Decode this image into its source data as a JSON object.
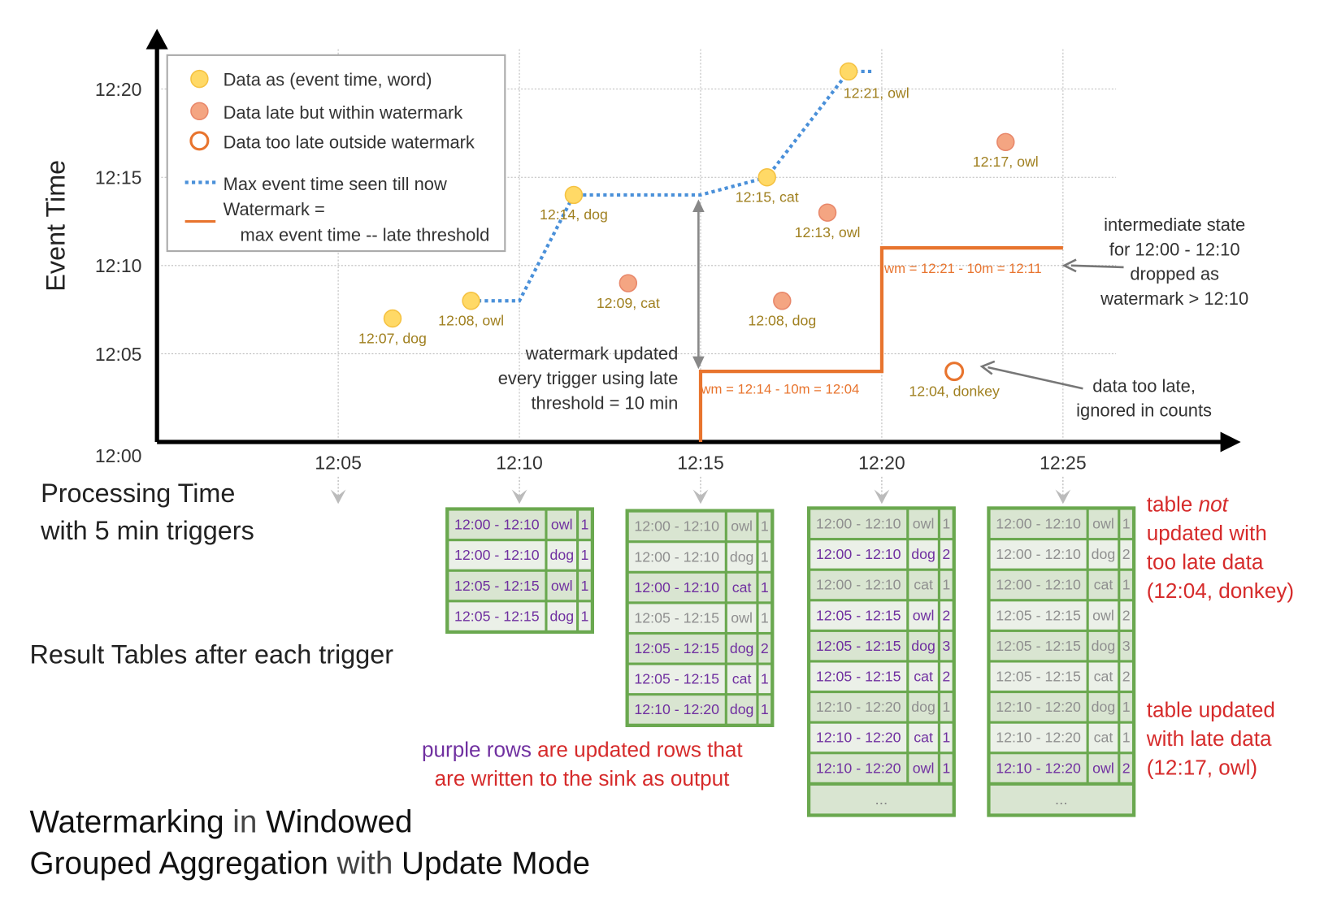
{
  "axes": {
    "y_label": "Event Time",
    "x_label_line1": "Processing Time",
    "x_label_line2": "with 5 min triggers",
    "y_ticks": [
      "12:00",
      "12:05",
      "12:10",
      "12:15",
      "12:20"
    ],
    "x_ticks": [
      "12:05",
      "12:10",
      "12:15",
      "12:20",
      "12:25"
    ]
  },
  "legend": {
    "data": "Data as (event time, word)",
    "late": "Data late but within watermark",
    "too_late": "Data too late outside watermark",
    "max_line": "Max event time seen till now",
    "watermark_line1": "Watermark =",
    "watermark_line2": "max event time -- late threshold"
  },
  "colors": {
    "on_time": "#ffd966",
    "late": "#f4a582",
    "too_late": "#e8742e",
    "max_line": "#4a90d9",
    "watermark": "#e8742e",
    "label": "#a08020",
    "table_border": "#6aa84f",
    "updated_row": "#7030a0",
    "note": "#d62b2b"
  },
  "points": [
    {
      "processing": "12:06:30",
      "event": "12:07",
      "word": "dog",
      "kind": "on_time",
      "label": "12:07, dog"
    },
    {
      "processing": "12:08:40",
      "event": "12:08",
      "word": "owl",
      "kind": "on_time",
      "label": "12:08, owl"
    },
    {
      "processing": "12:11:30",
      "event": "12:14",
      "word": "dog",
      "kind": "on_time",
      "label": "12:14, dog"
    },
    {
      "processing": "12:13:00",
      "event": "12:09",
      "word": "cat",
      "kind": "late",
      "label": "12:09, cat"
    },
    {
      "processing": "12:16:50",
      "event": "12:15",
      "word": "cat",
      "kind": "on_time",
      "label": "12:15, cat"
    },
    {
      "processing": "12:17:15",
      "event": "12:08",
      "word": "dog",
      "kind": "late",
      "label": "12:08, dog"
    },
    {
      "processing": "12:18:30",
      "event": "12:13",
      "word": "owl",
      "kind": "late",
      "label": "12:13, owl"
    },
    {
      "processing": "12:19:05",
      "event": "12:21",
      "word": "owl",
      "kind": "on_time",
      "label": "12:21, owl"
    },
    {
      "processing": "12:22:00",
      "event": "12:04",
      "word": "donkey",
      "kind": "too_late",
      "label": "12:04, donkey"
    },
    {
      "processing": "12:23:25",
      "event": "12:17",
      "word": "owl",
      "kind": "late",
      "label": "12:17, owl"
    }
  ],
  "max_event_line": [
    [
      "12:08:40",
      "12:08"
    ],
    [
      "12:10:00",
      "12:08"
    ],
    [
      "12:11:30",
      "12:14"
    ],
    [
      "12:15:00",
      "12:14"
    ],
    [
      "12:16:50",
      "12:15"
    ],
    [
      "12:19:05",
      "12:21"
    ],
    [
      "12:19:45",
      "12:21"
    ]
  ],
  "watermark_line": [
    [
      "12:15:00",
      "12:00"
    ],
    [
      "12:15:00",
      "12:04"
    ],
    [
      "12:20:00",
      "12:04"
    ],
    [
      "12:20:00",
      "12:11"
    ],
    [
      "12:25:00",
      "12:11"
    ]
  ],
  "annotations": {
    "wm1": "wm = 12:14 - 10m = 12:04",
    "wm2": "wm = 12:21 - 10m = 12:11",
    "wm_updated": [
      "watermark updated",
      "every trigger using late",
      "threshold = 10 min"
    ],
    "intermediate": [
      "intermediate state",
      "for 12:00 - 12:10",
      "dropped as",
      "watermark > 12:10"
    ],
    "too_late": [
      "data too late,",
      "ignored in counts"
    ]
  },
  "result_tables_label": "Result Tables after each trigger",
  "tables": [
    {
      "trigger": "12:10",
      "groups": [
        [
          [
            "12:00 - 12:10",
            "owl",
            "1",
            true
          ],
          [
            "12:00 - 12:10",
            "dog",
            "1",
            true
          ]
        ],
        [
          [
            "12:05 - 12:15",
            "owl",
            "1",
            true
          ],
          [
            "12:05 - 12:15",
            "dog",
            "1",
            true
          ]
        ]
      ],
      "more": ""
    },
    {
      "trigger": "12:15",
      "groups": [
        [
          [
            "12:00 - 12:10",
            "owl",
            "1",
            false
          ],
          [
            "12:00 - 12:10",
            "dog",
            "1",
            false
          ],
          [
            "12:00 - 12:10",
            "cat",
            "1",
            true
          ]
        ],
        [
          [
            "12:05 - 12:15",
            "owl",
            "1",
            false
          ],
          [
            "12:05 - 12:15",
            "dog",
            "2",
            true
          ],
          [
            "12:05 - 12:15",
            "cat",
            "1",
            true
          ]
        ],
        [
          [
            "12:10 - 12:20",
            "dog",
            "1",
            true
          ]
        ]
      ],
      "more": ""
    },
    {
      "trigger": "12:20",
      "groups": [
        [
          [
            "12:00 - 12:10",
            "owl",
            "1",
            false
          ],
          [
            "12:00 - 12:10",
            "dog",
            "2",
            true
          ],
          [
            "12:00 - 12:10",
            "cat",
            "1",
            false
          ]
        ],
        [
          [
            "12:05 - 12:15",
            "owl",
            "2",
            true
          ],
          [
            "12:05 - 12:15",
            "dog",
            "3",
            true
          ],
          [
            "12:05 - 12:15",
            "cat",
            "2",
            true
          ]
        ],
        [
          [
            "12:10 - 12:20",
            "dog",
            "1",
            false
          ],
          [
            "12:10 - 12:20",
            "cat",
            "1",
            true
          ],
          [
            "12:10 - 12:20",
            "owl",
            "1",
            true
          ]
        ]
      ],
      "more": "..."
    },
    {
      "trigger": "12:25",
      "groups": [
        [
          [
            "12:00 - 12:10",
            "owl",
            "1",
            false
          ],
          [
            "12:00 - 12:10",
            "dog",
            "2",
            false
          ],
          [
            "12:00 - 12:10",
            "cat",
            "1",
            false
          ]
        ],
        [
          [
            "12:05 - 12:15",
            "owl",
            "2",
            false
          ],
          [
            "12:05 - 12:15",
            "dog",
            "3",
            false
          ],
          [
            "12:05 - 12:15",
            "cat",
            "2",
            false
          ]
        ],
        [
          [
            "12:10 - 12:20",
            "dog",
            "1",
            false
          ],
          [
            "12:10 - 12:20",
            "cat",
            "1",
            false
          ],
          [
            "12:10 - 12:20",
            "owl",
            "2",
            true
          ]
        ]
      ],
      "more": "..."
    }
  ],
  "notes": {
    "not_updated_pre": "table ",
    "not_updated_em": "not",
    "not_updated_rest": [
      "updated with",
      "too late data",
      "(12:04, donkey)"
    ],
    "updated": [
      "table updated",
      "with late data",
      "(12:17, owl)"
    ],
    "purple_rows_a": "purple rows",
    "purple_rows_b": " are updated rows that",
    "purple_rows_c": "are written to the sink as output"
  },
  "title": {
    "w1": "Watermarking",
    "w2": " in ",
    "w3": "Windowed",
    "w4": "Grouped Aggregation",
    "w5": " with ",
    "w6": "Update Mode"
  }
}
